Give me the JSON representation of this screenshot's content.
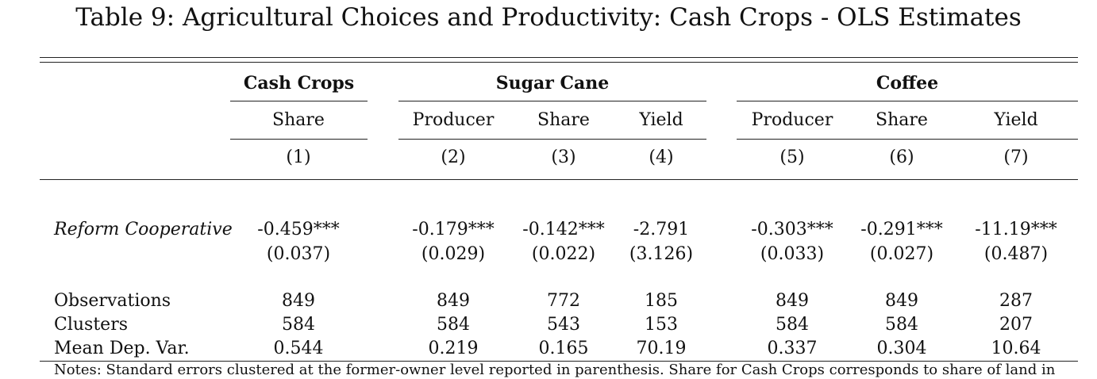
{
  "table": {
    "title": "Table 9: Agricultural Choices and Productivity: Cash Crops - OLS Estimates",
    "groups": [
      "Cash Crops",
      "Sugar Cane",
      "Coffee"
    ],
    "columns": [
      "Share",
      "Producer",
      "Share",
      "Yield",
      "Producer",
      "Share",
      "Yield"
    ],
    "column_numbers": [
      "(1)",
      "(2)",
      "(3)",
      "(4)",
      "(5)",
      "(6)",
      "(7)"
    ],
    "coef_row": {
      "label": "Reform Cooperative",
      "estimates": [
        "-0.459***",
        "-0.179***",
        "-0.142***",
        "-2.791",
        "-0.303***",
        "-0.291***",
        "-11.19***"
      ],
      "std_errors": [
        "(0.037)",
        "(0.029)",
        "(0.022)",
        "(3.126)",
        "(0.033)",
        "(0.027)",
        "(0.487)"
      ]
    },
    "stats": [
      {
        "label": "Observations",
        "values": [
          "849",
          "849",
          "772",
          "185",
          "849",
          "849",
          "287"
        ]
      },
      {
        "label": "Clusters",
        "values": [
          "584",
          "584",
          "543",
          "153",
          "584",
          "584",
          "207"
        ]
      },
      {
        "label": "Mean Dep. Var.",
        "values": [
          "0.544",
          "0.219",
          "0.165",
          "70.19",
          "0.337",
          "0.304",
          "10.64"
        ]
      }
    ],
    "notes": "Notes: Standard errors clustered at the former-owner level reported in parenthesis. Share for Cash Crops corresponds to share of land in"
  }
}
